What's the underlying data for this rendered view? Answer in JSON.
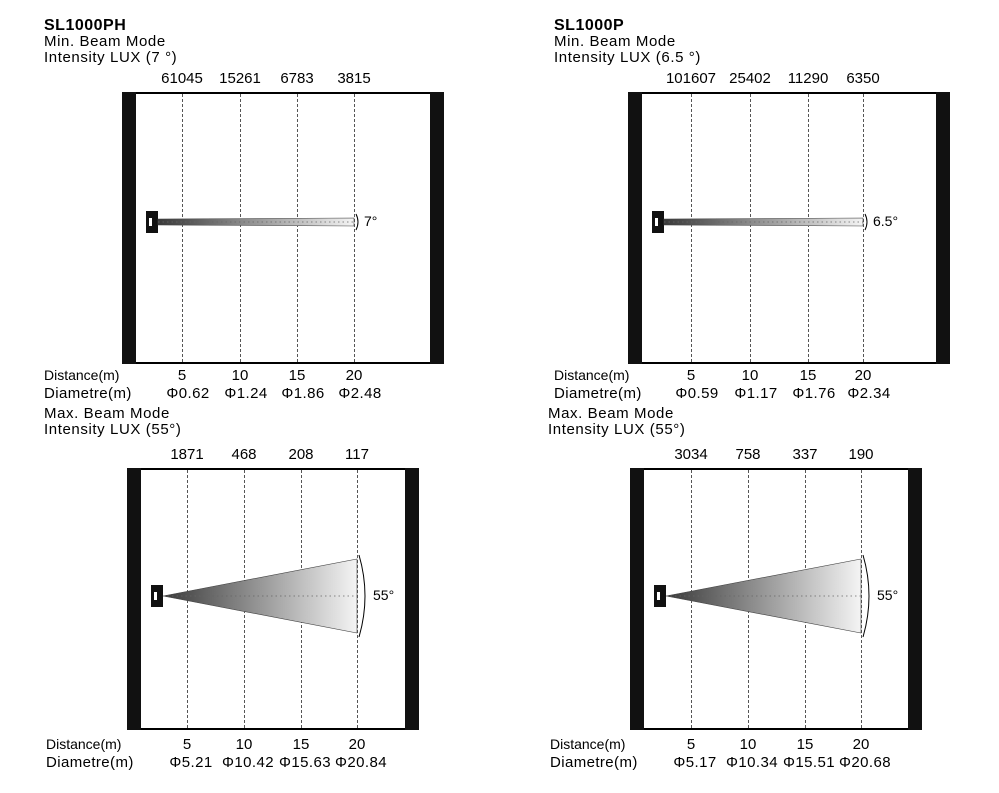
{
  "panels": [
    {
      "model": "SL1000PH",
      "mode": "Min. Beam Mode",
      "intensity_label": "Intensity LUX (7 °)",
      "lux": [
        "61045",
        "15261",
        "6783",
        "3815"
      ],
      "angle": "7°",
      "distance_label": "Distance(m)",
      "diameter_label": "Diametre(m)",
      "distances": [
        "5",
        "10",
        "15",
        "20"
      ],
      "diameters": [
        "Φ0.62",
        "Φ1.24",
        "Φ1.86",
        "Φ2.48"
      ],
      "beam_type": "narrow"
    },
    {
      "model": "SL1000P",
      "mode": "Min. Beam Mode",
      "intensity_label": "Intensity LUX (6.5 °)",
      "lux": [
        "101607",
        "25402",
        "11290",
        "6350"
      ],
      "angle": "6.5°",
      "distance_label": "Distance(m)",
      "diameter_label": "Diametre(m)",
      "distances": [
        "5",
        "10",
        "15",
        "20"
      ],
      "diameters": [
        "Φ0.59",
        "Φ1.17",
        "Φ1.76",
        "Φ2.34"
      ],
      "beam_type": "narrow"
    },
    {
      "model": "",
      "mode": "Max. Beam Mode",
      "intensity_label": "Intensity LUX (55°)",
      "lux": [
        "1871",
        "468",
        "208",
        "117"
      ],
      "angle": "55°",
      "distance_label": "Distance(m)",
      "diameter_label": "Diametre(m)",
      "distances": [
        "5",
        "10",
        "15",
        "20"
      ],
      "diameters": [
        "Φ5.21",
        "Φ10.42",
        "Φ15.63",
        "Φ20.84"
      ],
      "beam_type": "wide"
    },
    {
      "model": "",
      "mode": "Max. Beam Mode",
      "intensity_label": "Intensity LUX (55°)",
      "lux": [
        "3034",
        "758",
        "337",
        "190"
      ],
      "angle": "55°",
      "distance_label": "Distance(m)",
      "diameter_label": "Diametre(m)",
      "distances": [
        "5",
        "10",
        "15",
        "20"
      ],
      "diameters": [
        "Φ5.17",
        "Φ10.34",
        "Φ15.51",
        "Φ20.68"
      ],
      "beam_type": "wide"
    }
  ]
}
